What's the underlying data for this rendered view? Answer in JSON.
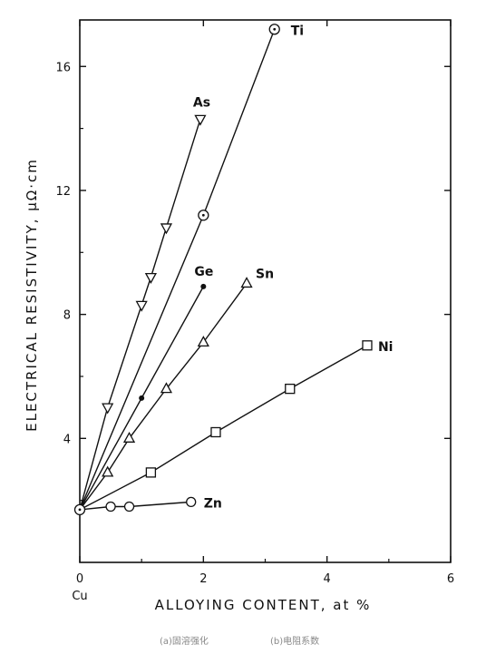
{
  "chart_data": {
    "type": "line",
    "xlabel": "ALLOYING CONTENT, at %",
    "ylabel": "ELECTRICAL RESISTIVITY, μΩ·cm",
    "xlim": [
      0,
      6
    ],
    "ylim": [
      0,
      17.5
    ],
    "x_ticks": [
      "0",
      "2",
      "4",
      "6"
    ],
    "y_ticks": [
      "4",
      "8",
      "12",
      "16"
    ],
    "origin_label": "Cu",
    "grid": false,
    "series": [
      {
        "name": "Ti",
        "marker": "circle-dot",
        "x": [
          0,
          2.0,
          3.15
        ],
        "y": [
          1.7,
          11.2,
          17.2
        ]
      },
      {
        "name": "As",
        "marker": "triangle-down",
        "x": [
          0,
          0.45,
          1.0,
          1.15,
          1.4,
          1.95
        ],
        "y": [
          1.7,
          5.0,
          8.3,
          9.2,
          10.8,
          14.3
        ]
      },
      {
        "name": "Ge",
        "marker": "filled-dot",
        "x": [
          0,
          1.0,
          2.0
        ],
        "y": [
          1.7,
          5.3,
          8.9
        ]
      },
      {
        "name": "Sn",
        "marker": "triangle-up",
        "x": [
          0,
          0.45,
          0.8,
          1.4,
          2.0,
          2.7
        ],
        "y": [
          1.7,
          2.9,
          4.0,
          5.6,
          7.1,
          9.0
        ]
      },
      {
        "name": "Ni",
        "marker": "square",
        "x": [
          0,
          1.15,
          2.2,
          3.4,
          4.65
        ],
        "y": [
          1.7,
          2.9,
          4.2,
          5.6,
          7.0
        ]
      },
      {
        "name": "Zn",
        "marker": "circle",
        "x": [
          0,
          0.5,
          0.8,
          1.8
        ],
        "y": [
          1.7,
          1.8,
          1.8,
          1.95
        ]
      }
    ]
  },
  "captions": [
    "(a)固溶强化",
    "(b)电阻系数"
  ]
}
